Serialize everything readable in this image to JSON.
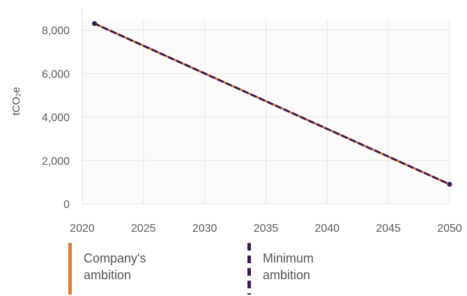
{
  "chart_data": {
    "type": "line",
    "title": "",
    "xlabel": "",
    "ylabel": "tCO₂e",
    "x_ticks": [
      2020,
      2025,
      2030,
      2035,
      2040,
      2045,
      2050
    ],
    "y_ticks": [
      "0",
      "2,000",
      "4,000",
      "6,000",
      "8,000"
    ],
    "y_tick_values": [
      0,
      2000,
      4000,
      6000,
      8000
    ],
    "xlim": [
      2020,
      2050
    ],
    "ylim": [
      0,
      9000
    ],
    "grid": true,
    "legend_position": "bottom",
    "series": [
      {
        "name": "Company's ambition",
        "color": "#e07b39",
        "style": "solid",
        "x": [
          2021,
          2050
        ],
        "y": [
          8300,
          900
        ]
      },
      {
        "name": "Minimum ambition",
        "color": "#3d1a4e",
        "style": "dashed",
        "x": [
          2021,
          2050
        ],
        "y": [
          8300,
          900
        ]
      }
    ],
    "endpoint_color": "#3d1a4e",
    "grid_color": "#e6e6e6"
  },
  "legend": {
    "items": [
      {
        "label": "Company's\nambition",
        "color": "#e07b39",
        "style": "solid"
      },
      {
        "label": "Minimum\nambition",
        "color": "#3d1a4e",
        "style": "dashed"
      }
    ]
  }
}
